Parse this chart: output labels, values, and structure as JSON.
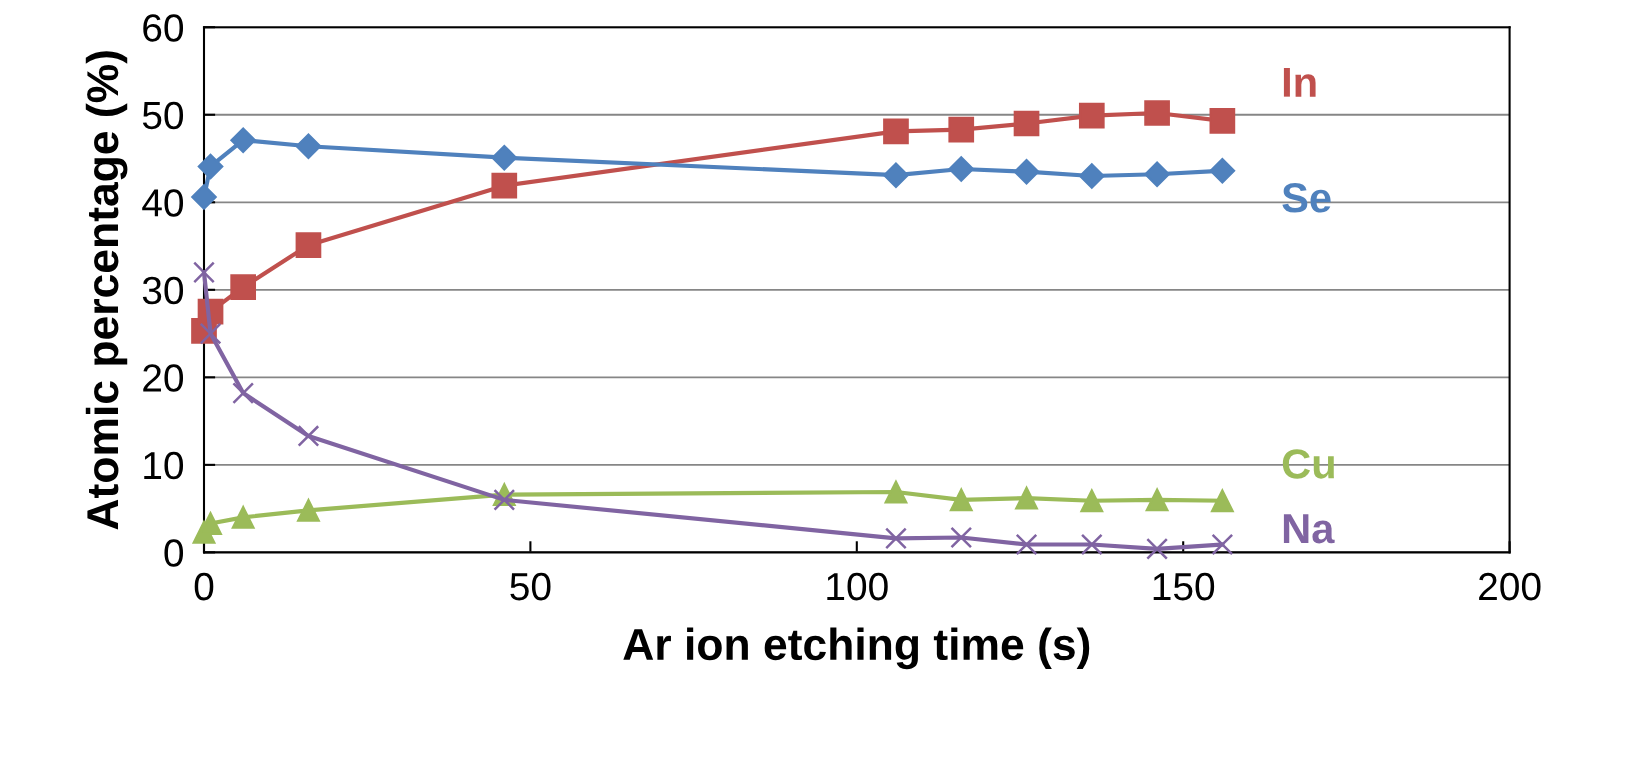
{
  "chart_data": {
    "type": "line",
    "xlabel": "Ar ion etching time (s)",
    "ylabel": "Atomic percentage (%)",
    "xlim": [
      0,
      200
    ],
    "xticks": [
      0,
      50,
      100,
      150,
      200
    ],
    "ylim": [
      0,
      60
    ],
    "yticks": [
      0,
      10,
      20,
      30,
      40,
      50,
      60
    ],
    "grid": "y",
    "legend": false,
    "line_style": "solid",
    "series": [
      {
        "name": "In",
        "color": "#c0504d",
        "marker": "square",
        "x": [
          0,
          1,
          6,
          16,
          46,
          106,
          116,
          126,
          136,
          146,
          156
        ],
        "values": [
          25.3,
          27.5,
          30.3,
          35.1,
          41.9,
          48.1,
          48.3,
          49.0,
          49.9,
          50.2,
          49.3
        ]
      },
      {
        "name": "Se",
        "color": "#4f81bd",
        "marker": "diamond",
        "x": [
          0,
          1,
          6,
          16,
          46,
          106,
          116,
          126,
          136,
          146,
          156
        ],
        "values": [
          40.6,
          44.1,
          47.1,
          46.4,
          45.1,
          43.1,
          43.8,
          43.5,
          43.0,
          43.2,
          43.6
        ]
      },
      {
        "name": "Cu",
        "color": "#9bbb59",
        "marker": "triangle",
        "x": [
          0,
          1,
          6,
          16,
          46,
          106,
          116,
          126,
          136,
          146,
          156
        ],
        "values": [
          2.3,
          3.3,
          4.0,
          4.8,
          6.6,
          6.9,
          6.0,
          6.2,
          5.9,
          6.0,
          5.9
        ]
      },
      {
        "name": "Na",
        "color": "#8064a2",
        "marker": "cross",
        "x": [
          0,
          1,
          6,
          16,
          46,
          106,
          116,
          126,
          136,
          146,
          156
        ],
        "values": [
          32.0,
          25.0,
          18.2,
          13.3,
          6.0,
          1.6,
          1.7,
          0.9,
          0.9,
          0.4,
          0.9
        ]
      }
    ]
  }
}
